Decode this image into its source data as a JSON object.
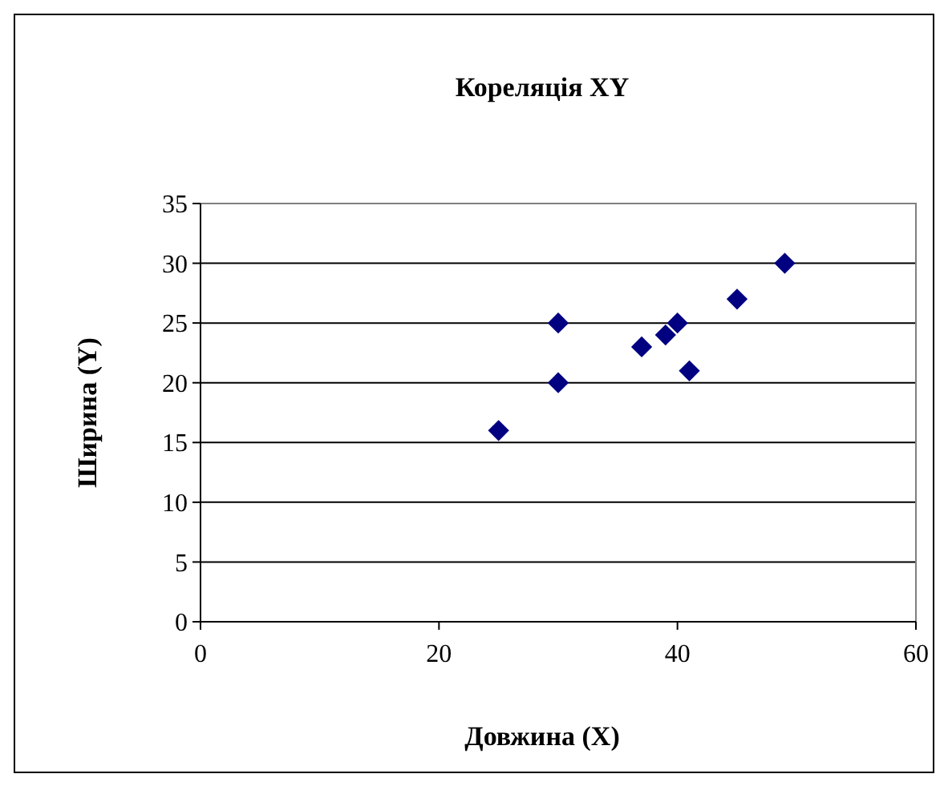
{
  "chart_data": {
    "type": "scatter",
    "title": "Кореляція XY",
    "xlabel": "Довжина (X)",
    "ylabel": "Ширина (Y)",
    "series": [
      {
        "color": "#000080",
        "x": [
          25,
          30,
          30,
          37,
          39,
          40,
          41,
          45,
          49
        ],
        "values": [
          16,
          25,
          20,
          23,
          24,
          25,
          21,
          27,
          30
        ]
      }
    ],
    "xlim": [
      0,
      60
    ],
    "xticks": [
      0,
      20,
      40,
      60
    ],
    "ylim": [
      0,
      35
    ],
    "yticks": [
      0,
      5,
      10,
      15,
      20,
      25,
      30,
      35
    ],
    "grid": "y",
    "marker": "diamond"
  }
}
